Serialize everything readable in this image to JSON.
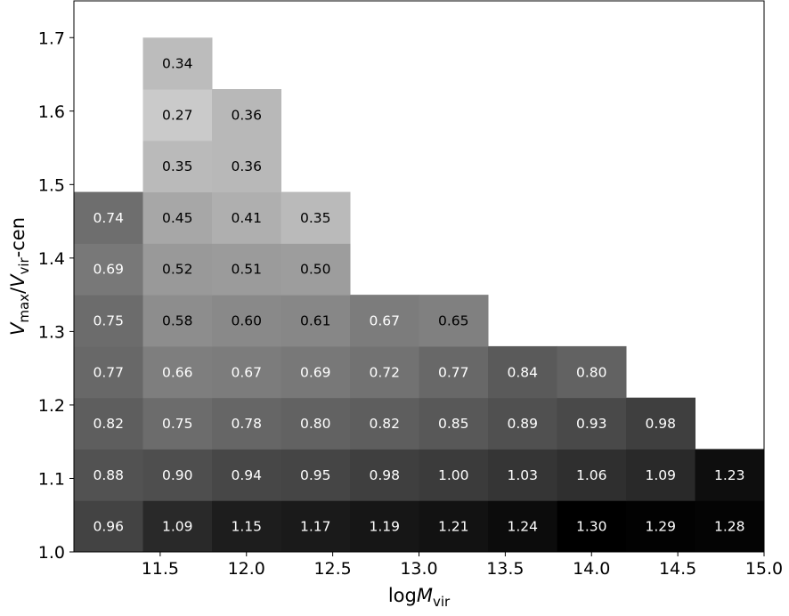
{
  "chart_data": {
    "type": "heatmap",
    "colormap": "gray_r",
    "xlabel": {
      "prefix": "log",
      "main": "M",
      "sub": "vir"
    },
    "ylabel": {
      "main": "V",
      "sub1": "max",
      "sep": "/",
      "main2": "V",
      "sub2": "vir",
      "suffix": "-cen"
    },
    "xlim": [
      11.0,
      15.0
    ],
    "ylim": [
      1.0,
      1.75
    ],
    "xticks": [
      "11.5",
      "12.0",
      "12.5",
      "13.0",
      "13.5",
      "14.0",
      "14.5",
      "15.0"
    ],
    "yticks": [
      "1.0",
      "1.1",
      "1.2",
      "1.3",
      "1.4",
      "1.5",
      "1.6",
      "1.7"
    ],
    "x_bin_edges": [
      11.0,
      11.4,
      11.8,
      12.2,
      12.6,
      13.0,
      13.4,
      13.8,
      14.2,
      14.6,
      15.0
    ],
    "y_bin_edges": [
      1.0,
      1.07,
      1.14,
      1.21,
      1.28,
      1.35,
      1.42,
      1.49,
      1.56,
      1.63,
      1.7
    ],
    "color_range": [
      0.0,
      1.3
    ],
    "cells": [
      {
        "col": 0,
        "row": 0,
        "value": "0.96"
      },
      {
        "col": 1,
        "row": 0,
        "value": "1.09"
      },
      {
        "col": 2,
        "row": 0,
        "value": "1.15"
      },
      {
        "col": 3,
        "row": 0,
        "value": "1.17"
      },
      {
        "col": 4,
        "row": 0,
        "value": "1.19"
      },
      {
        "col": 5,
        "row": 0,
        "value": "1.21"
      },
      {
        "col": 6,
        "row": 0,
        "value": "1.24"
      },
      {
        "col": 7,
        "row": 0,
        "value": "1.30"
      },
      {
        "col": 8,
        "row": 0,
        "value": "1.29"
      },
      {
        "col": 9,
        "row": 0,
        "value": "1.28"
      },
      {
        "col": 0,
        "row": 1,
        "value": "0.88"
      },
      {
        "col": 1,
        "row": 1,
        "value": "0.90"
      },
      {
        "col": 2,
        "row": 1,
        "value": "0.94"
      },
      {
        "col": 3,
        "row": 1,
        "value": "0.95"
      },
      {
        "col": 4,
        "row": 1,
        "value": "0.98"
      },
      {
        "col": 5,
        "row": 1,
        "value": "1.00"
      },
      {
        "col": 6,
        "row": 1,
        "value": "1.03"
      },
      {
        "col": 7,
        "row": 1,
        "value": "1.06"
      },
      {
        "col": 8,
        "row": 1,
        "value": "1.09"
      },
      {
        "col": 9,
        "row": 1,
        "value": "1.23"
      },
      {
        "col": 0,
        "row": 2,
        "value": "0.82"
      },
      {
        "col": 1,
        "row": 2,
        "value": "0.75"
      },
      {
        "col": 2,
        "row": 2,
        "value": "0.78"
      },
      {
        "col": 3,
        "row": 2,
        "value": "0.80"
      },
      {
        "col": 4,
        "row": 2,
        "value": "0.82"
      },
      {
        "col": 5,
        "row": 2,
        "value": "0.85"
      },
      {
        "col": 6,
        "row": 2,
        "value": "0.89"
      },
      {
        "col": 7,
        "row": 2,
        "value": "0.93"
      },
      {
        "col": 8,
        "row": 2,
        "value": "0.98"
      },
      {
        "col": 0,
        "row": 3,
        "value": "0.77"
      },
      {
        "col": 1,
        "row": 3,
        "value": "0.66"
      },
      {
        "col": 2,
        "row": 3,
        "value": "0.67"
      },
      {
        "col": 3,
        "row": 3,
        "value": "0.69"
      },
      {
        "col": 4,
        "row": 3,
        "value": "0.72"
      },
      {
        "col": 5,
        "row": 3,
        "value": "0.77"
      },
      {
        "col": 6,
        "row": 3,
        "value": "0.84"
      },
      {
        "col": 7,
        "row": 3,
        "value": "0.80"
      },
      {
        "col": 0,
        "row": 4,
        "value": "0.75"
      },
      {
        "col": 1,
        "row": 4,
        "value": "0.58"
      },
      {
        "col": 2,
        "row": 4,
        "value": "0.60"
      },
      {
        "col": 3,
        "row": 4,
        "value": "0.61"
      },
      {
        "col": 4,
        "row": 4,
        "value": "0.67"
      },
      {
        "col": 5,
        "row": 4,
        "value": "0.65"
      },
      {
        "col": 0,
        "row": 5,
        "value": "0.69"
      },
      {
        "col": 1,
        "row": 5,
        "value": "0.52"
      },
      {
        "col": 2,
        "row": 5,
        "value": "0.51"
      },
      {
        "col": 3,
        "row": 5,
        "value": "0.50"
      },
      {
        "col": 0,
        "row": 6,
        "value": "0.74"
      },
      {
        "col": 1,
        "row": 6,
        "value": "0.45"
      },
      {
        "col": 2,
        "row": 6,
        "value": "0.41"
      },
      {
        "col": 3,
        "row": 6,
        "value": "0.35"
      },
      {
        "col": 1,
        "row": 7,
        "value": "0.35"
      },
      {
        "col": 2,
        "row": 7,
        "value": "0.36"
      },
      {
        "col": 1,
        "row": 8,
        "value": "0.27"
      },
      {
        "col": 2,
        "row": 8,
        "value": "0.36"
      },
      {
        "col": 1,
        "row": 9,
        "value": "0.34"
      }
    ]
  }
}
